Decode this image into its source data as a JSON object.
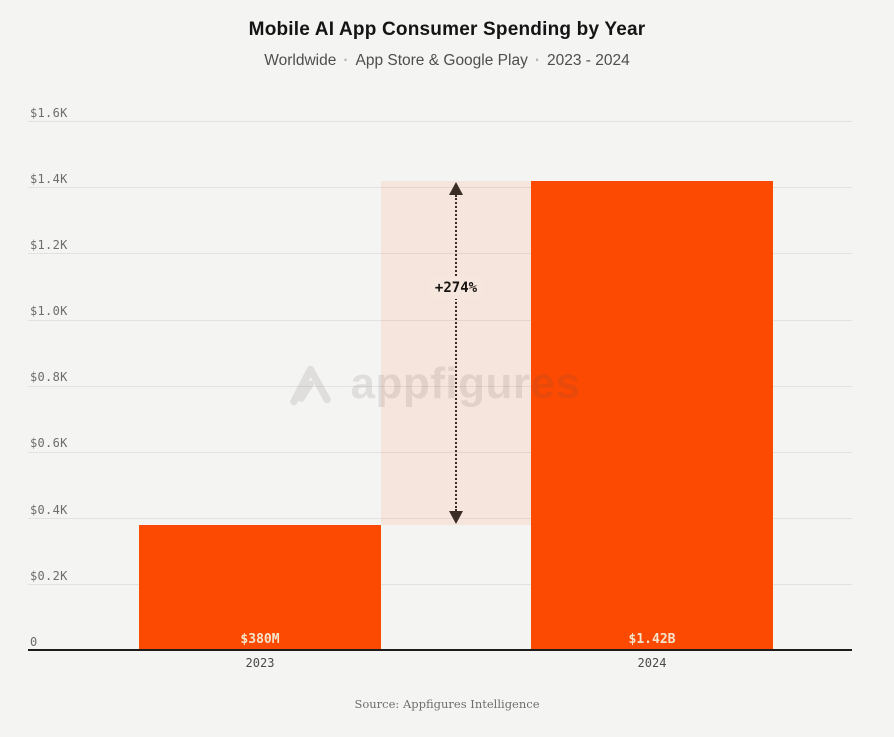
{
  "header": {
    "title": "Mobile AI App Consumer Spending by Year",
    "subtitle_parts": [
      "Worldwide",
      "App Store & Google Play",
      "2023 - 2024"
    ],
    "separator": "·"
  },
  "annotation": {
    "label": "+274%"
  },
  "watermark": {
    "text": "appfigures"
  },
  "footer": {
    "source": "Source: Appfigures Intelligence"
  },
  "chart_data": {
    "type": "bar",
    "title": "Mobile AI App Consumer Spending by Year",
    "subtitle": "Worldwide · App Store & Google Play · 2023 - 2024",
    "categories": [
      "2023",
      "2024"
    ],
    "values_millions_usd": [
      380,
      1420
    ],
    "bar_labels": [
      "$380M",
      "$1.42B"
    ],
    "y_ticks": [
      {
        "label": "$1.6K",
        "value": 1600
      },
      {
        "label": "$1.4K",
        "value": 1400
      },
      {
        "label": "$1.2K",
        "value": 1200
      },
      {
        "label": "$1.0K",
        "value": 1000
      },
      {
        "label": "$0.8K",
        "value": 800
      },
      {
        "label": "$0.6K",
        "value": 600
      },
      {
        "label": "$0.4K",
        "value": 400
      },
      {
        "label": "$0.2K",
        "value": 200
      },
      {
        "label": "0",
        "value": 0
      }
    ],
    "ylim": [
      0,
      1600
    ],
    "y_axis_unit": "millions of USD (ticks labeled in $K)",
    "grid": true,
    "legend": false,
    "annotation": "+274%",
    "bar_color": "#fc4a03",
    "source": "Source: Appfigures Intelligence"
  },
  "colors": {
    "background": "#f4f4f3",
    "bar": "#fc4a03",
    "band": "rgba(251,74,3,0.09)",
    "gridline": "#e4e2e0",
    "axis": "#1d1c1b",
    "arrow": "#3a2d26",
    "bar_label": "#f3e5cb"
  }
}
